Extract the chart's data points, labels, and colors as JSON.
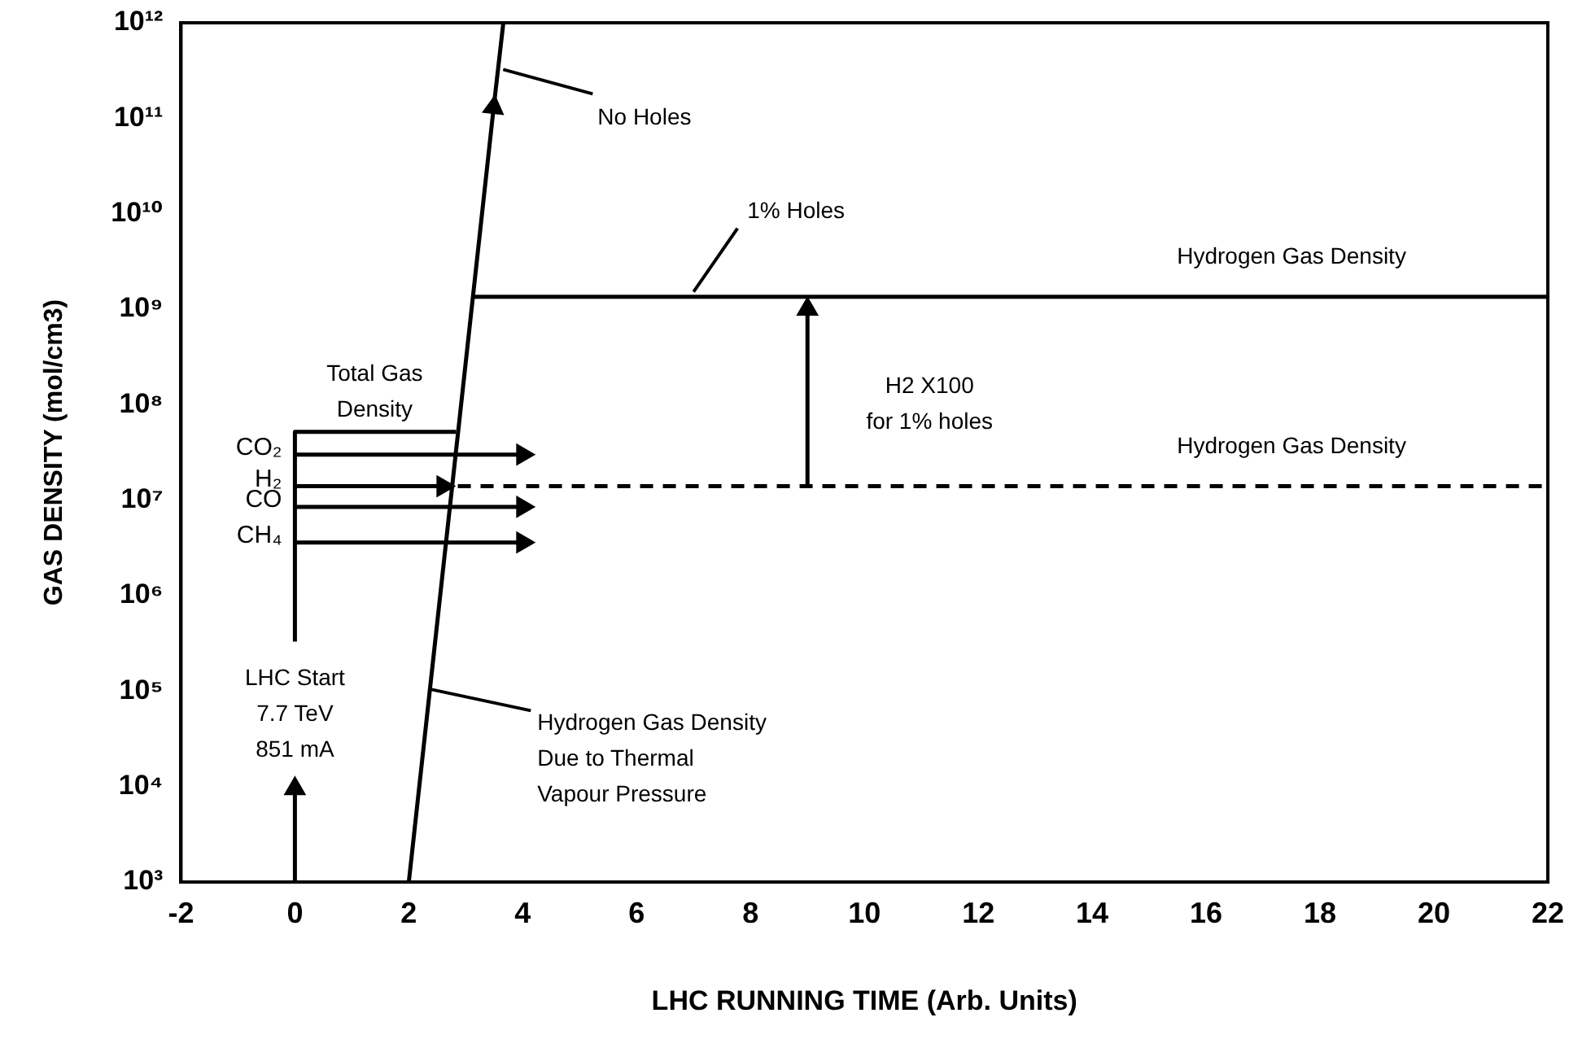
{
  "chart_data": {
    "type": "line",
    "xlabel": "LHC RUNNING TIME (Arb. Units)",
    "ylabel": "GAS DENSITY (mol/cm3)",
    "log": "y",
    "grid": false,
    "legend": false,
    "xlim": [
      -2,
      22
    ],
    "xticks": [
      -2,
      0,
      2,
      4,
      6,
      8,
      10,
      12,
      14,
      16,
      18,
      20,
      22
    ],
    "ylim": [
      1000,
      1000000000000
    ],
    "yticks": [
      {
        "value": 1000,
        "label": "10³"
      },
      {
        "value": 10000,
        "label": "10⁴"
      },
      {
        "value": 100000,
        "label": "10⁵"
      },
      {
        "value": 1000000,
        "label": "10⁶"
      },
      {
        "value": 10000000,
        "label": "10⁷"
      },
      {
        "value": 100000000,
        "label": "10⁸"
      },
      {
        "value": 1000000000,
        "label": "10⁹"
      },
      {
        "value": 10000000000,
        "label": "10¹⁰"
      },
      {
        "value": 100000000000,
        "label": "10¹¹"
      },
      {
        "value": 1000000000000,
        "label": "10¹²"
      }
    ],
    "series": [
      {
        "color": "#000000",
        "x": [
          2,
          3.49
        ],
        "values": [
          1000,
          130000000000
        ],
        "marker": "triangle"
      },
      {
        "color": "#000000",
        "x": [
          3.49,
          3.66
        ],
        "values": [
          130000000000,
          1000000000000
        ]
      },
      {
        "color": "#000000",
        "x": [
          3.13,
          22
        ],
        "values": [
          1350000000,
          1350000000
        ]
      },
      {
        "color": "#000000",
        "x": [
          2.86,
          22
        ],
        "values": [
          14000000,
          14000000
        ],
        "line_style": "dashed"
      },
      {
        "color": "#000000",
        "x": [
          0,
          0,
          2.83
        ],
        "values": [
          330000,
          52000000,
          52000000
        ]
      },
      {
        "name": "CO₂",
        "color": "#000000",
        "x": [
          0,
          4
        ],
        "values": [
          30000000,
          30000000
        ],
        "marker": "triangle"
      },
      {
        "name": "H₂",
        "color": "#000000",
        "x": [
          0,
          2.6
        ],
        "values": [
          14000000,
          14000000
        ],
        "marker": "triangle"
      },
      {
        "name": "CO",
        "color": "#000000",
        "x": [
          0,
          4
        ],
        "values": [
          8500000,
          8500000
        ],
        "marker": "triangle"
      },
      {
        "name": "CH₄",
        "color": "#000000",
        "x": [
          0,
          4
        ],
        "values": [
          3600000,
          3600000
        ],
        "marker": "triangle"
      },
      {
        "color": "#000000",
        "x": [
          0,
          0
        ],
        "values": [
          1000,
          9500
        ],
        "marker": "triangle"
      },
      {
        "color": "#000000",
        "x": [
          9,
          9
        ],
        "values": [
          14000000,
          1000000000
        ],
        "marker": "triangle"
      }
    ],
    "annotations": [
      {
        "text": "No Holes",
        "x": 3.6,
        "y": 300000000000
      },
      {
        "text": "1% Holes",
        "x": 7,
        "y": 1350000000
      },
      {
        "text": "Hydrogen Gas Density",
        "x": 17.5,
        "y": 1350000000
      },
      {
        "text": "H2 X100\nfor 1% holes",
        "x": 9,
        "y": 100000000
      },
      {
        "text": "Hydrogen Gas Density",
        "x": 17.5,
        "y": 14000000
      },
      {
        "text": "Total Gas\nDensity",
        "x": 1.4,
        "y": 52000000
      },
      {
        "text": "LHC Start\n7.7 TeV\n851 mA",
        "x": 0,
        "y": 10000
      },
      {
        "text": "Hydrogen Gas Density\nDue to Thermal\nVapour Pressure",
        "x": 2.37,
        "y": 100000
      }
    ]
  }
}
